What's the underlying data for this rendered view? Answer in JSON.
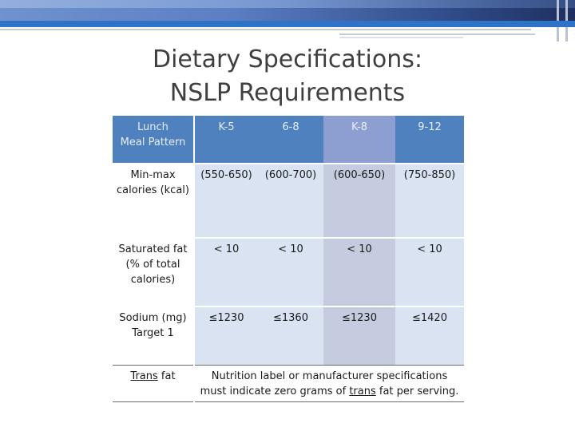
{
  "title": {
    "line1": "Dietary Specifications:",
    "line2": "NSLP Requirements"
  },
  "table": {
    "header": {
      "label_line1": "Lunch",
      "label_line2": "Meal Pattern",
      "grades": [
        "K-5",
        "6-8",
        "K-8",
        "9-12"
      ]
    },
    "rows": [
      {
        "label_line1": "Min-max",
        "label_line2": "calories (kcal)",
        "values": [
          "(550-650)",
          "(600-700)",
          "(600-650)",
          "(750-850)"
        ]
      },
      {
        "label_line1": "Saturated fat",
        "label_line2": "(% of total",
        "label_line3": "calories)",
        "values": [
          "< 10",
          "< 10",
          "< 10",
          "< 10"
        ]
      },
      {
        "label_line1": "Sodium (mg)",
        "label_line2": "Target 1",
        "values": [
          "≤1230",
          "≤1360",
          "≤1230",
          "≤1420"
        ]
      }
    ],
    "trans_fat": {
      "label_underlined": "Trans",
      "label_rest": " fat",
      "note_line1": "Nutrition label or manufacturer specifications",
      "note_line2_before": "must indicate zero grams of ",
      "note_line2_underlined": "trans",
      "note_line2_after": " fat per serving."
    }
  },
  "colors": {
    "header_bg": "#4e81bd",
    "header_highlight_bg": "#8c9fd0",
    "body_bg": "#d9e3f2",
    "body_highlight_bg": "#c5ccdf",
    "title_color": "#3f3f3f"
  }
}
